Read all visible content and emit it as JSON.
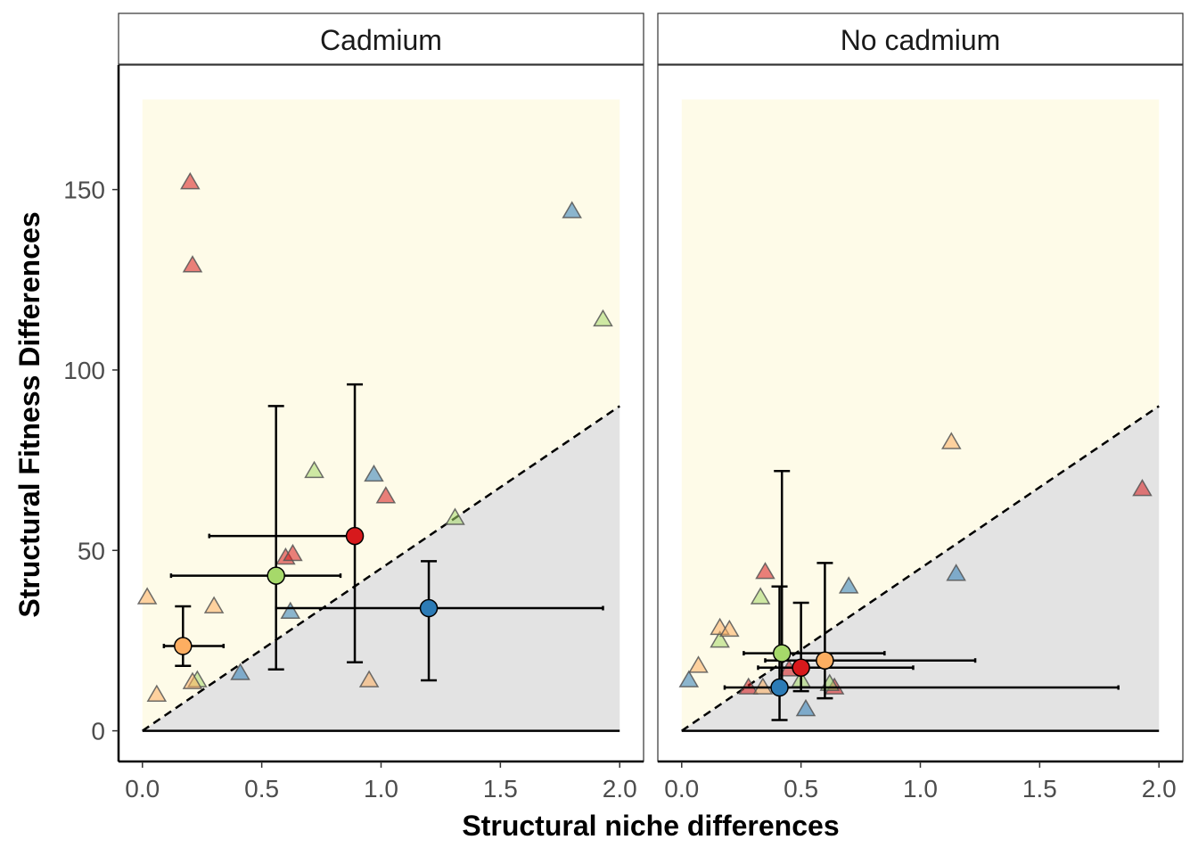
{
  "chart_data": {
    "type": "scatter",
    "xlabel": "Structural niche differences",
    "ylabel": "Structural Fitness Differences",
    "xlim": [
      -0.1,
      2.1
    ],
    "ylim": [
      -8.5,
      184.5
    ],
    "x_ticks": [
      "0.0",
      "0.5",
      "1.0",
      "1.5",
      "2.0"
    ],
    "y_ticks": [
      "0",
      "50",
      "100",
      "150"
    ],
    "grid": false,
    "legend": "none",
    "region_fill": {
      "coexistence": "#fefbe8",
      "exclusion": "#e3e3e3"
    },
    "boundary_line": {
      "from": [
        0,
        0
      ],
      "to": [
        2,
        90
      ],
      "style": "dashed"
    },
    "colors": {
      "red": "#d7191c",
      "orange": "#fdae61",
      "green": "#a6d96a",
      "blue": "#2c7bb6"
    },
    "panels": [
      {
        "strip": "Cadmium",
        "triangles": [
          {
            "x": 0.2,
            "y": 152,
            "color": "red"
          },
          {
            "x": 0.21,
            "y": 129,
            "color": "red"
          },
          {
            "x": 0.6,
            "y": 48,
            "color": "red"
          },
          {
            "x": 0.63,
            "y": 49,
            "color": "red"
          },
          {
            "x": 1.02,
            "y": 65,
            "color": "red"
          },
          {
            "x": 1.8,
            "y": 144,
            "color": "blue"
          },
          {
            "x": 0.97,
            "y": 71,
            "color": "blue"
          },
          {
            "x": 0.62,
            "y": 33,
            "color": "blue"
          },
          {
            "x": 0.41,
            "y": 16,
            "color": "blue"
          },
          {
            "x": 1.93,
            "y": 114,
            "color": "green"
          },
          {
            "x": 0.72,
            "y": 72,
            "color": "green"
          },
          {
            "x": 1.31,
            "y": 59,
            "color": "green"
          },
          {
            "x": 0.23,
            "y": 14,
            "color": "green"
          },
          {
            "x": 0.02,
            "y": 37,
            "color": "orange"
          },
          {
            "x": 0.3,
            "y": 34.5,
            "color": "orange"
          },
          {
            "x": 0.06,
            "y": 10,
            "color": "orange"
          },
          {
            "x": 0.21,
            "y": 13.5,
            "color": "orange"
          },
          {
            "x": 0.95,
            "y": 14,
            "color": "orange"
          }
        ],
        "means": [
          {
            "x": 0.89,
            "y": 54,
            "color": "red",
            "x_err": [
              0.28,
              0.89
            ],
            "y_err": [
              19,
              96
            ]
          },
          {
            "x": 0.56,
            "y": 43,
            "color": "green",
            "x_err": [
              0.12,
              0.83
            ],
            "y_err": [
              17,
              90
            ]
          },
          {
            "x": 1.2,
            "y": 34,
            "color": "blue",
            "x_err": [
              0.56,
              1.93
            ],
            "y_err": [
              14,
              47
            ]
          },
          {
            "x": 0.17,
            "y": 23.5,
            "color": "orange",
            "x_err": [
              0.09,
              0.34
            ],
            "y_err": [
              18,
              34.5
            ]
          }
        ]
      },
      {
        "strip": "No cadmium",
        "triangles": [
          {
            "x": 1.93,
            "y": 67,
            "color": "red"
          },
          {
            "x": 0.35,
            "y": 44,
            "color": "red"
          },
          {
            "x": 0.28,
            "y": 12,
            "color": "red"
          },
          {
            "x": 0.45,
            "y": 17,
            "color": "red"
          },
          {
            "x": 0.64,
            "y": 12,
            "color": "red"
          },
          {
            "x": 1.15,
            "y": 43.5,
            "color": "blue"
          },
          {
            "x": 0.7,
            "y": 40,
            "color": "blue"
          },
          {
            "x": 0.52,
            "y": 6,
            "color": "blue"
          },
          {
            "x": 0.03,
            "y": 14,
            "color": "blue"
          },
          {
            "x": 0.33,
            "y": 37,
            "color": "green"
          },
          {
            "x": 0.16,
            "y": 25,
            "color": "green"
          },
          {
            "x": 0.5,
            "y": 14,
            "color": "green"
          },
          {
            "x": 0.62,
            "y": 13,
            "color": "green"
          },
          {
            "x": 1.13,
            "y": 80,
            "color": "orange"
          },
          {
            "x": 0.16,
            "y": 28.5,
            "color": "orange"
          },
          {
            "x": 0.2,
            "y": 28,
            "color": "orange"
          },
          {
            "x": 0.07,
            "y": 18,
            "color": "orange"
          },
          {
            "x": 0.34,
            "y": 12,
            "color": "orange"
          }
        ],
        "means": [
          {
            "x": 0.42,
            "y": 21.5,
            "color": "green",
            "x_err": [
              0.26,
              0.85
            ],
            "y_err": [
              12,
              72
            ]
          },
          {
            "x": 0.6,
            "y": 19.5,
            "color": "orange",
            "x_err": [
              0.35,
              1.23
            ],
            "y_err": [
              9,
              46.5
            ]
          },
          {
            "x": 0.5,
            "y": 17.5,
            "color": "red",
            "x_err": [
              0.32,
              0.97
            ],
            "y_err": [
              11,
              35.5
            ]
          },
          {
            "x": 0.41,
            "y": 12,
            "color": "blue",
            "x_err": [
              0.18,
              1.83
            ],
            "y_err": [
              3,
              40
            ]
          }
        ]
      }
    ]
  }
}
